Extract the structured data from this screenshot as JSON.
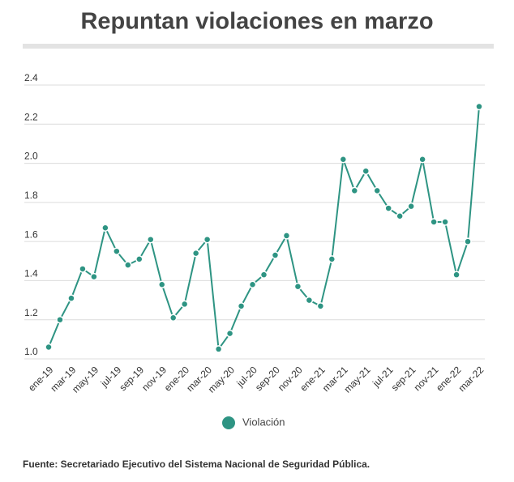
{
  "chart_data": {
    "type": "line",
    "title": "Repuntan violaciones en marzo",
    "source": "Fuente: Secretariado Ejecutivo del Sistema Nacional de Seguridad Pública.",
    "categories": [
      "ene-19",
      null,
      "mar-19",
      null,
      "may-19",
      null,
      "jul-19",
      null,
      "sep-19",
      null,
      "nov-19",
      null,
      "ene-20",
      null,
      "mar-20",
      null,
      "may-20",
      null,
      "jul-20",
      null,
      "sep-20",
      null,
      "nov-20",
      null,
      "ene-21",
      null,
      "mar-21",
      null,
      "may-21",
      null,
      "jul-21",
      null,
      "sep-21",
      null,
      "nov-21",
      null,
      "ene-22",
      null,
      "mar-22"
    ],
    "series": [
      {
        "name": "Violación",
        "color": "#2e9483",
        "values": [
          1.06,
          1.2,
          1.31,
          1.46,
          1.42,
          1.67,
          1.55,
          1.48,
          1.51,
          1.61,
          1.38,
          1.21,
          1.28,
          1.54,
          1.61,
          1.05,
          1.13,
          1.27,
          1.38,
          1.43,
          1.53,
          1.63,
          1.37,
          1.3,
          1.27,
          1.51,
          2.02,
          1.86,
          1.96,
          1.86,
          1.77,
          1.73,
          1.78,
          2.02,
          1.7,
          1.7,
          1.43,
          1.6,
          2.29
        ]
      }
    ],
    "ylim": [
      1.0,
      2.4
    ],
    "yticks": [
      {
        "value": 1.0,
        "label": "1.0"
      },
      1.2,
      1.4,
      1.6,
      1.8,
      {
        "value": 2.0,
        "label": "2.0"
      },
      2.2,
      2.4
    ],
    "grid": true,
    "legend": "bottom"
  }
}
